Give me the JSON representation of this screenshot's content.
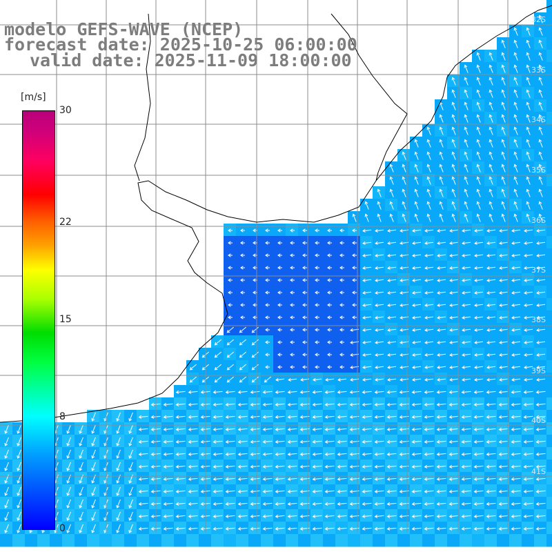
{
  "header": {
    "line1": "modelo GEFS-WAVE (NCEP)",
    "line2": "forecast date: 2025-10-25 06:00:00",
    "line3": "valid date: 2025-11-09 18:00:00"
  },
  "colorbar": {
    "unit": "[m/s]",
    "min": 0,
    "max": 30,
    "labels": [
      {
        "value": 0,
        "text": "0"
      },
      {
        "value": 8,
        "text": "8"
      },
      {
        "value": 15,
        "text": "15"
      },
      {
        "value": 22,
        "text": "22"
      },
      {
        "value": 30,
        "text": "30"
      }
    ]
  },
  "grid_labels": {
    "latitudes": [
      "32S",
      "33S",
      "34S",
      "35S",
      "36S",
      "37S",
      "38S",
      "39S",
      "40S",
      "41S"
    ]
  },
  "colors": {
    "ocean_field": "#0aa8f8",
    "calm_zone": "#1060f0",
    "coastline": "#000000",
    "gridline": "#8c8c8c",
    "wind_arrow": "#ffffff",
    "title_text": "#7d7d7d"
  }
}
